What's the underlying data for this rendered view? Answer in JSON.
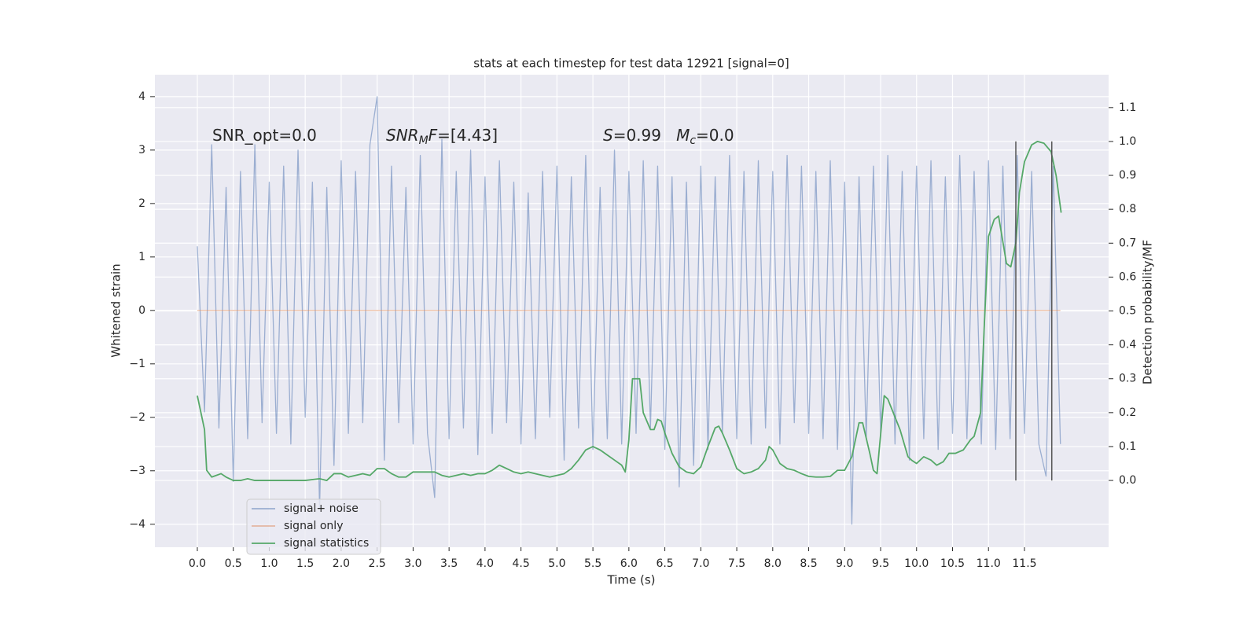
{
  "chart_data": {
    "type": "line",
    "title": "stats at each timestep for test data 12921 [signal=0]",
    "x_label": "Time (s)",
    "y_label": "Whitened strain",
    "y2_label": "Detection probability/MF",
    "grid": true,
    "legend": "lower left",
    "xlim": [
      -0.59,
      12.67
    ],
    "ylim": [
      -4.43,
      4.41
    ],
    "y2lim": [
      -0.197,
      1.197
    ],
    "xticks": [
      {
        "value": 0,
        "label": "0.0"
      },
      0.5,
      {
        "value": 1,
        "label": "1.0"
      },
      1.5,
      {
        "value": 2,
        "label": "2.0"
      },
      2.5,
      {
        "value": 3,
        "label": "3.0"
      },
      3.5,
      {
        "value": 4,
        "label": "4.0"
      },
      4.5,
      {
        "value": 5,
        "label": "5.0"
      },
      5.5,
      {
        "value": 6,
        "label": "6.0"
      },
      6.5,
      {
        "value": 7,
        "label": "7.0"
      },
      7.5,
      {
        "value": 8,
        "label": "8.0"
      },
      8.5,
      {
        "value": 9,
        "label": "9.0"
      },
      9.5,
      {
        "value": 10,
        "label": "10.0"
      },
      10.5,
      {
        "value": 11,
        "label": "11.0"
      },
      11.5
    ],
    "yticks": [
      {
        "value": -4,
        "label": "−4"
      },
      {
        "value": -3,
        "label": "−3"
      },
      {
        "value": -2,
        "label": "−2"
      },
      {
        "value": -1,
        "label": "−1"
      },
      0,
      1,
      2,
      3,
      4
    ],
    "y2ticks": [
      {
        "value": 0,
        "label": "0.0"
      },
      0.1,
      0.2,
      0.3,
      0.4,
      0.5,
      0.6,
      0.7,
      0.8,
      0.9,
      {
        "value": 1,
        "label": "1.0"
      },
      1.1
    ],
    "annotations": [
      {
        "parts": [
          {
            "t": "SNR_opt=0.0"
          }
        ]
      },
      {
        "parts": [
          {
            "t": "SNR",
            "italic": true
          },
          {
            "t": "M",
            "italic": true,
            "sub": true
          },
          {
            "t": "F",
            "italic": true
          },
          {
            "t": "=[4.43]"
          }
        ]
      },
      {
        "parts": [
          {
            "t": "S",
            "italic": true
          },
          {
            "t": "=0.99   "
          },
          {
            "t": "M",
            "italic": true
          },
          {
            "t": "c",
            "italic": true,
            "sub": true
          },
          {
            "t": "=0.0"
          }
        ]
      }
    ],
    "vlines": [
      11.38,
      11.88
    ],
    "vline_y2": [
      0,
      1
    ],
    "vline_color": "#555555",
    "series": [
      {
        "name": "signal+ noise",
        "color": "#4c72b0",
        "alpha": 0.5,
        "axis": "y",
        "x": [
          0.0,
          0.1,
          0.2,
          0.3,
          0.4,
          0.5,
          0.6,
          0.7,
          0.8,
          0.9,
          1.0,
          1.1,
          1.2,
          1.3,
          1.4,
          1.5,
          1.6,
          1.7,
          1.8,
          1.9,
          2.0,
          2.1,
          2.2,
          2.3,
          2.4,
          2.5,
          2.6,
          2.7,
          2.8,
          2.9,
          3.0,
          3.1,
          3.2,
          3.3,
          3.4,
          3.5,
          3.6,
          3.7,
          3.8,
          3.9,
          4.0,
          4.1,
          4.2,
          4.3,
          4.4,
          4.5,
          4.6,
          4.7,
          4.8,
          4.9,
          5.0,
          5.1,
          5.2,
          5.3,
          5.4,
          5.5,
          5.6,
          5.7,
          5.8,
          5.9,
          6.0,
          6.1,
          6.2,
          6.3,
          6.4,
          6.5,
          6.6,
          6.7,
          6.8,
          6.9,
          7.0,
          7.1,
          7.2,
          7.3,
          7.4,
          7.5,
          7.6,
          7.7,
          7.8,
          7.9,
          8.0,
          8.1,
          8.2,
          8.3,
          8.4,
          8.5,
          8.6,
          8.7,
          8.8,
          8.9,
          9.0,
          9.1,
          9.2,
          9.3,
          9.4,
          9.5,
          9.6,
          9.7,
          9.8,
          9.9,
          10.0,
          10.1,
          10.2,
          10.3,
          10.4,
          10.5,
          10.6,
          10.7,
          10.8,
          10.9,
          11.0,
          11.1,
          11.2,
          11.3,
          11.4,
          11.5,
          11.6,
          11.7,
          11.8,
          11.9,
          12.0
        ],
        "values": [
          1.2,
          -1.9,
          3.1,
          -2.2,
          2.3,
          -3.2,
          2.6,
          -2.4,
          3.1,
          -2.1,
          2.4,
          -2.3,
          2.7,
          -2.5,
          3.0,
          -2.0,
          2.4,
          -3.7,
          2.3,
          -2.9,
          2.8,
          -2.3,
          2.6,
          -2.1,
          3.1,
          4.0,
          -2.8,
          2.7,
          -2.1,
          2.3,
          -2.5,
          2.9,
          -2.3,
          -3.5,
          3.2,
          -2.4,
          2.6,
          -2.2,
          3.0,
          -2.7,
          2.5,
          -2.3,
          2.8,
          -2.1,
          2.4,
          -2.5,
          2.2,
          -2.4,
          2.6,
          -2.0,
          2.7,
          -2.8,
          2.5,
          -2.2,
          2.9,
          -2.6,
          2.3,
          -2.4,
          3.0,
          -2.5,
          2.6,
          -2.3,
          2.8,
          -2.2,
          2.7,
          -2.6,
          2.5,
          -3.3,
          2.4,
          -2.9,
          2.7,
          -2.6,
          2.5,
          -2.3,
          2.9,
          -2.4,
          2.6,
          -2.5,
          2.8,
          -2.2,
          2.6,
          -2.5,
          2.9,
          -2.1,
          2.7,
          -2.3,
          2.6,
          -2.4,
          2.8,
          -2.6,
          2.4,
          -4.0,
          2.5,
          -2.4,
          2.7,
          -2.3,
          2.9,
          -2.5,
          2.6,
          -2.8,
          2.7,
          -2.4,
          2.8,
          -2.6,
          2.5,
          -2.3,
          2.9,
          -2.4,
          2.6,
          -2.5,
          2.8,
          -2.6,
          2.7,
          -2.4,
          2.9,
          -2.3,
          2.6,
          -2.5,
          -3.1,
          2.7,
          -2.5
        ]
      },
      {
        "name": "signal only",
        "color": "#dd8452",
        "alpha": 0.5,
        "axis": "y",
        "x": [
          0.0,
          12.0
        ],
        "values": [
          0,
          0
        ]
      },
      {
        "name": "signal statistics",
        "color": "#55a868",
        "alpha": 1,
        "axis": "y2",
        "x": [
          0.0,
          0.05,
          0.1,
          0.13,
          0.2,
          0.33,
          0.4,
          0.5,
          0.6,
          0.7,
          0.8,
          1.0,
          1.2,
          1.5,
          1.7,
          1.8,
          1.9,
          2.0,
          2.1,
          2.2,
          2.3,
          2.4,
          2.5,
          2.6,
          2.7,
          2.8,
          2.9,
          3.0,
          3.1,
          3.2,
          3.3,
          3.4,
          3.5,
          3.6,
          3.7,
          3.8,
          3.9,
          4.0,
          4.1,
          4.2,
          4.3,
          4.4,
          4.5,
          4.6,
          4.7,
          4.8,
          4.9,
          5.0,
          5.1,
          5.2,
          5.3,
          5.4,
          5.5,
          5.6,
          5.7,
          5.8,
          5.9,
          5.95,
          6.0,
          6.05,
          6.15,
          6.2,
          6.3,
          6.35,
          6.4,
          6.45,
          6.5,
          6.6,
          6.7,
          6.8,
          6.9,
          7.0,
          7.1,
          7.2,
          7.25,
          7.3,
          7.4,
          7.5,
          7.6,
          7.7,
          7.8,
          7.9,
          7.95,
          8.0,
          8.1,
          8.2,
          8.3,
          8.4,
          8.5,
          8.6,
          8.7,
          8.8,
          8.9,
          9.0,
          9.1,
          9.2,
          9.25,
          9.35,
          9.4,
          9.45,
          9.55,
          9.6,
          9.77,
          9.88,
          9.93,
          10.0,
          10.1,
          10.2,
          10.28,
          10.37,
          10.45,
          10.54,
          10.65,
          10.75,
          10.8,
          10.89,
          10.94,
          11.0,
          11.08,
          11.14,
          11.25,
          11.31,
          11.38,
          11.43,
          11.5,
          11.6,
          11.68,
          11.77,
          11.87,
          11.94,
          12.01
        ],
        "values": [
          0.25,
          0.2,
          0.15,
          0.03,
          0.01,
          0.02,
          0.01,
          0.0,
          0.0,
          0.005,
          0.0,
          0.0,
          0.0,
          0.0,
          0.005,
          0.0,
          0.02,
          0.02,
          0.01,
          0.015,
          0.02,
          0.015,
          0.035,
          0.035,
          0.02,
          0.01,
          0.01,
          0.025,
          0.025,
          0.025,
          0.025,
          0.015,
          0.01,
          0.015,
          0.02,
          0.015,
          0.02,
          0.02,
          0.03,
          0.045,
          0.035,
          0.025,
          0.02,
          0.025,
          0.02,
          0.015,
          0.01,
          0.015,
          0.02,
          0.035,
          0.06,
          0.09,
          0.1,
          0.09,
          0.075,
          0.06,
          0.045,
          0.025,
          0.12,
          0.3,
          0.3,
          0.2,
          0.15,
          0.15,
          0.18,
          0.175,
          0.14,
          0.08,
          0.04,
          0.025,
          0.02,
          0.04,
          0.1,
          0.155,
          0.16,
          0.14,
          0.09,
          0.035,
          0.02,
          0.025,
          0.035,
          0.06,
          0.1,
          0.09,
          0.05,
          0.035,
          0.03,
          0.02,
          0.012,
          0.01,
          0.01,
          0.012,
          0.03,
          0.03,
          0.07,
          0.17,
          0.17,
          0.08,
          0.03,
          0.02,
          0.25,
          0.24,
          0.15,
          0.07,
          0.06,
          0.05,
          0.07,
          0.06,
          0.045,
          0.055,
          0.08,
          0.08,
          0.09,
          0.12,
          0.13,
          0.2,
          0.45,
          0.72,
          0.77,
          0.78,
          0.64,
          0.63,
          0.7,
          0.85,
          0.94,
          0.99,
          1.0,
          0.995,
          0.97,
          0.9,
          0.79
        ]
      }
    ]
  }
}
